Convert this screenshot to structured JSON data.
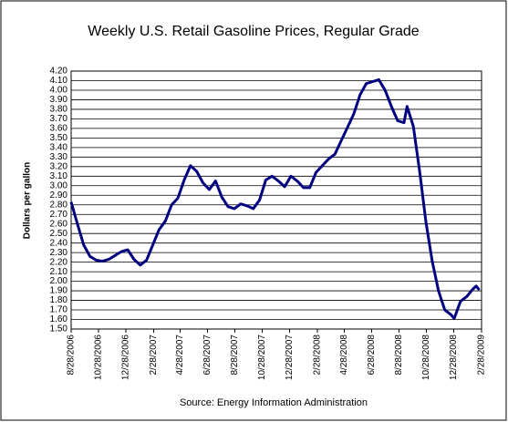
{
  "chart_data": {
    "type": "line",
    "title": "Weekly U.S. Retail Gasoline Prices, Regular Grade",
    "y_label": "Dollars per gallon",
    "source": "Source:  Energy Information Administration",
    "color": "#000080",
    "grid": true,
    "xlim": [
      "8/28/2006",
      "2/28/2009"
    ],
    "xticks": [
      "8/28/2006",
      "10/28/2006",
      "12/28/2006",
      "2/28/2007",
      "4/28/2007",
      "6/28/2007",
      "8/28/2007",
      "10/28/2007",
      "12/28/2007",
      "2/28/2008",
      "4/28/2008",
      "6/28/2008",
      "8/28/2008",
      "10/28/2008",
      "12/28/2008",
      "2/28/2009"
    ],
    "ylim": [
      1.5,
      4.2
    ],
    "yticks": [
      {
        "value": 1.5,
        "label": "1.50"
      },
      {
        "value": 1.6,
        "label": "1.60"
      },
      {
        "value": 1.7,
        "label": "1.70"
      },
      {
        "value": 1.8,
        "label": "1.80"
      },
      {
        "value": 1.9,
        "label": "1.90"
      },
      {
        "value": 2.0,
        "label": "2.00"
      },
      {
        "value": 2.1,
        "label": "2.10"
      },
      {
        "value": 2.2,
        "label": "2.20"
      },
      {
        "value": 2.3,
        "label": "2.30"
      },
      {
        "value": 2.4,
        "label": "2.40"
      },
      {
        "value": 2.5,
        "label": "2.50"
      },
      {
        "value": 2.6,
        "label": "2.60"
      },
      {
        "value": 2.7,
        "label": "2.70"
      },
      {
        "value": 2.8,
        "label": "2.80"
      },
      {
        "value": 2.9,
        "label": "2.90"
      },
      {
        "value": 3.0,
        "label": "3.00"
      },
      {
        "value": 3.1,
        "label": "3.10"
      },
      {
        "value": 3.2,
        "label": "3.20"
      },
      {
        "value": 3.3,
        "label": "3.30"
      },
      {
        "value": 3.4,
        "label": "3.40"
      },
      {
        "value": 3.5,
        "label": "3.50"
      },
      {
        "value": 3.6,
        "label": "3.60"
      },
      {
        "value": 3.7,
        "label": "3.70"
      },
      {
        "value": 3.8,
        "label": "3.80"
      },
      {
        "value": 3.9,
        "label": "3.90"
      },
      {
        "value": 4.0,
        "label": "4.00"
      },
      {
        "value": 4.1,
        "label": "4.10"
      },
      {
        "value": 4.2,
        "label": "4.20"
      }
    ],
    "x": [
      "8/28/2006",
      "9/11/2006",
      "9/25/2006",
      "10/9/2006",
      "10/23/2006",
      "11/6/2006",
      "11/20/2006",
      "12/4/2006",
      "12/18/2006",
      "1/1/2007",
      "1/15/2007",
      "1/29/2007",
      "2/12/2007",
      "2/26/2007",
      "3/12/2007",
      "3/26/2007",
      "4/9/2007",
      "4/23/2007",
      "5/7/2007",
      "5/21/2007",
      "6/4/2007",
      "6/18/2007",
      "7/2/2007",
      "7/16/2007",
      "7/30/2007",
      "8/13/2007",
      "8/27/2007",
      "9/10/2007",
      "9/24/2007",
      "10/8/2007",
      "10/22/2007",
      "11/5/2007",
      "11/19/2007",
      "12/3/2007",
      "12/17/2007",
      "12/31/2007",
      "1/14/2008",
      "1/28/2008",
      "2/11/2008",
      "2/25/2008",
      "3/10/2008",
      "3/24/2008",
      "4/7/2008",
      "4/21/2008",
      "5/5/2008",
      "5/19/2008",
      "6/2/2008",
      "6/16/2008",
      "6/30/2008",
      "7/14/2008",
      "7/28/2008",
      "8/11/2008",
      "8/25/2008",
      "9/8/2008",
      "9/15/2008",
      "9/29/2008",
      "10/13/2008",
      "10/27/2008",
      "11/10/2008",
      "11/24/2008",
      "12/8/2008",
      "12/22/2008",
      "12/29/2008",
      "1/12/2009",
      "1/26/2009",
      "2/9/2009",
      "2/16/2009",
      "2/23/2009"
    ],
    "values": [
      2.83,
      2.6,
      2.38,
      2.26,
      2.22,
      2.21,
      2.23,
      2.27,
      2.31,
      2.33,
      2.23,
      2.17,
      2.22,
      2.38,
      2.54,
      2.63,
      2.8,
      2.87,
      3.06,
      3.21,
      3.15,
      3.03,
      2.96,
      3.05,
      2.88,
      2.78,
      2.76,
      2.81,
      2.79,
      2.76,
      2.85,
      3.06,
      3.1,
      3.05,
      2.99,
      3.1,
      3.05,
      2.98,
      2.98,
      3.14,
      3.21,
      3.28,
      3.33,
      3.47,
      3.61,
      3.75,
      3.95,
      4.07,
      4.09,
      4.11,
      4.0,
      3.83,
      3.68,
      3.66,
      3.83,
      3.62,
      3.15,
      2.62,
      2.21,
      1.9,
      1.7,
      1.65,
      1.61,
      1.79,
      1.84,
      1.92,
      1.95,
      1.91
    ]
  }
}
